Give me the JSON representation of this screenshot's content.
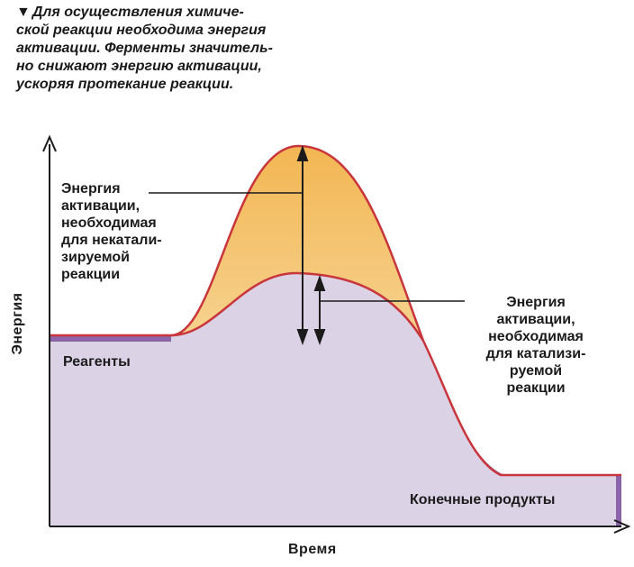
{
  "caption": {
    "marker": "▼",
    "text": "Для осуществления химиче-\nской реакции необходима энергия\nактивации. Ферменты значитель-\nно снижают энергию активации,\nускоряя протекание реакции."
  },
  "axes": {
    "x_label": "Время",
    "y_label": "Энергия"
  },
  "labels": {
    "uncatalyzed": "Энергия\nактивации,\nнеобходимая\nдля некатали-\nзируемой\nреакции",
    "catalyzed": "Энергия\nактивации,\nнеобходимая\nдля катализи-\nруемой\nреакции",
    "reactants": "Реагенты",
    "products": "Конечные продукты"
  },
  "colors": {
    "uncatalyzed_fill": "#f0b85a",
    "catalyzed_fill": "#d9cfe3",
    "curve_line": "#c8363c",
    "side_band": "#8a63a8",
    "axis": "#1b1b1b"
  }
}
